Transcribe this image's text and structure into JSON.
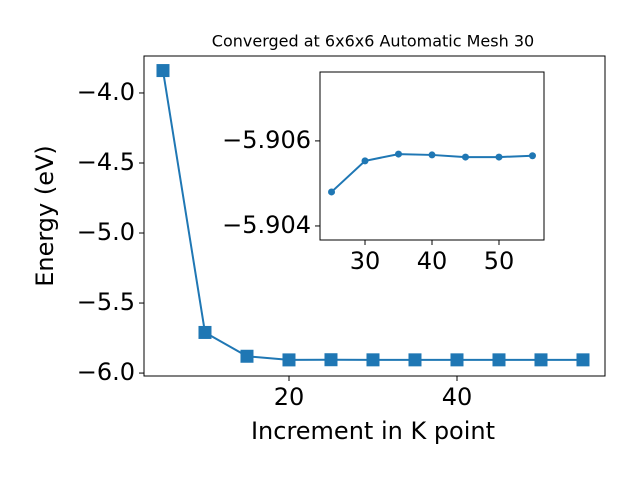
{
  "chart_data": [
    {
      "type": "line",
      "title": "Converged at 6x6x6 Automatic Mesh 30",
      "x_label": "Increment in K point",
      "y_label": "Energy (eV)",
      "x": [
        5,
        10,
        15,
        20,
        25,
        30,
        35,
        40,
        45,
        50,
        55
      ],
      "values": [
        -3.84,
        -5.71,
        -5.88,
        -5.906,
        -5.9048,
        -5.90553,
        -5.90569,
        -5.90567,
        -5.90562,
        -5.90562,
        -5.90565
      ],
      "color": "#1f77b4",
      "marker": "square",
      "xlim": [
        2.74,
        57.62
      ],
      "ylim": [
        -6.021,
        -3.736
      ],
      "xticks": [
        20,
        40
      ],
      "yticks": [
        {
          "value": -6.0,
          "label": "−6.0"
        },
        {
          "value": -5.5,
          "label": "−5.5"
        },
        {
          "value": -5.0,
          "label": "−5.0"
        },
        {
          "value": -4.5,
          "label": "−4.5"
        },
        {
          "value": -4.0,
          "label": "−4.0"
        }
      ]
    },
    {
      "type": "line",
      "x": [
        25,
        30,
        35,
        40,
        45,
        50,
        55
      ],
      "values": [
        -5.9048,
        -5.90553,
        -5.90569,
        -5.90567,
        -5.90562,
        -5.90562,
        -5.90565
      ],
      "color": "#1f77b4",
      "marker": "circle",
      "xlim": [
        23.28,
        56.72
      ],
      "ylim": [
        -5.90367,
        -5.90762
      ],
      "xticks": [
        30,
        40,
        50
      ],
      "yticks": [
        {
          "value": -5.904,
          "label": "−5.904"
        },
        {
          "value": -5.906,
          "label": "−5.906"
        }
      ]
    }
  ]
}
